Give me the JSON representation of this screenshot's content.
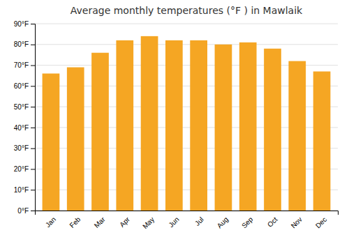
{
  "chart_data": {
    "type": "bar",
    "title": "Average monthly temperatures (°F ) in Mawlaik",
    "categories": [
      "Jan",
      "Feb",
      "Mar",
      "Apr",
      "May",
      "Jun",
      "Jul",
      "Aug",
      "Sep",
      "Oct",
      "Nov",
      "Dec"
    ],
    "values": [
      66,
      69,
      76,
      82,
      84,
      82,
      82,
      80,
      81,
      78,
      72,
      67
    ],
    "color": "#F5A623",
    "ylim": [
      0,
      90
    ],
    "yticks": [
      {
        "value": 0,
        "label": "0°F"
      },
      {
        "value": 10,
        "label": "10°F"
      },
      {
        "value": 20,
        "label": "20°F"
      },
      {
        "value": 30,
        "label": "30°F"
      },
      {
        "value": 40,
        "label": "40°F"
      },
      {
        "value": 50,
        "label": "50°F"
      },
      {
        "value": 60,
        "label": "60°F"
      },
      {
        "value": 70,
        "label": "70°F"
      },
      {
        "value": 80,
        "label": "80°F"
      },
      {
        "value": 90,
        "label": "90°F"
      }
    ],
    "grid": true
  }
}
